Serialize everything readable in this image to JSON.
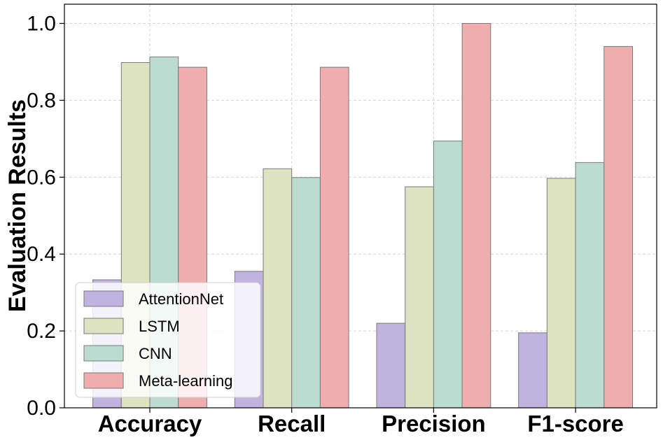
{
  "chart_data": {
    "type": "bar",
    "title": "",
    "xlabel": "",
    "ylabel": "Evaluation Results",
    "ylim": [
      0.0,
      1.05
    ],
    "yticks": [
      "0.0",
      "0.2",
      "0.4",
      "0.6",
      "0.8",
      "1.0"
    ],
    "grid": true,
    "legend_position": "bottom-left",
    "categories": [
      "Accuracy",
      "Recall",
      "Precision",
      "F1-score"
    ],
    "series": [
      {
        "name": "AttentionNet",
        "color": "#bdb4e0",
        "values": [
          0.333,
          0.355,
          0.22,
          0.195
        ]
      },
      {
        "name": "LSTM",
        "color": "#dde3c0",
        "values": [
          0.898,
          0.622,
          0.575,
          0.597
        ]
      },
      {
        "name": "CNN",
        "color": "#bcdcd2",
        "values": [
          0.913,
          0.599,
          0.694,
          0.638
        ]
      },
      {
        "name": "Meta-learning",
        "color": "#f0adad",
        "values": [
          0.886,
          0.886,
          1.0,
          0.94
        ]
      }
    ]
  }
}
